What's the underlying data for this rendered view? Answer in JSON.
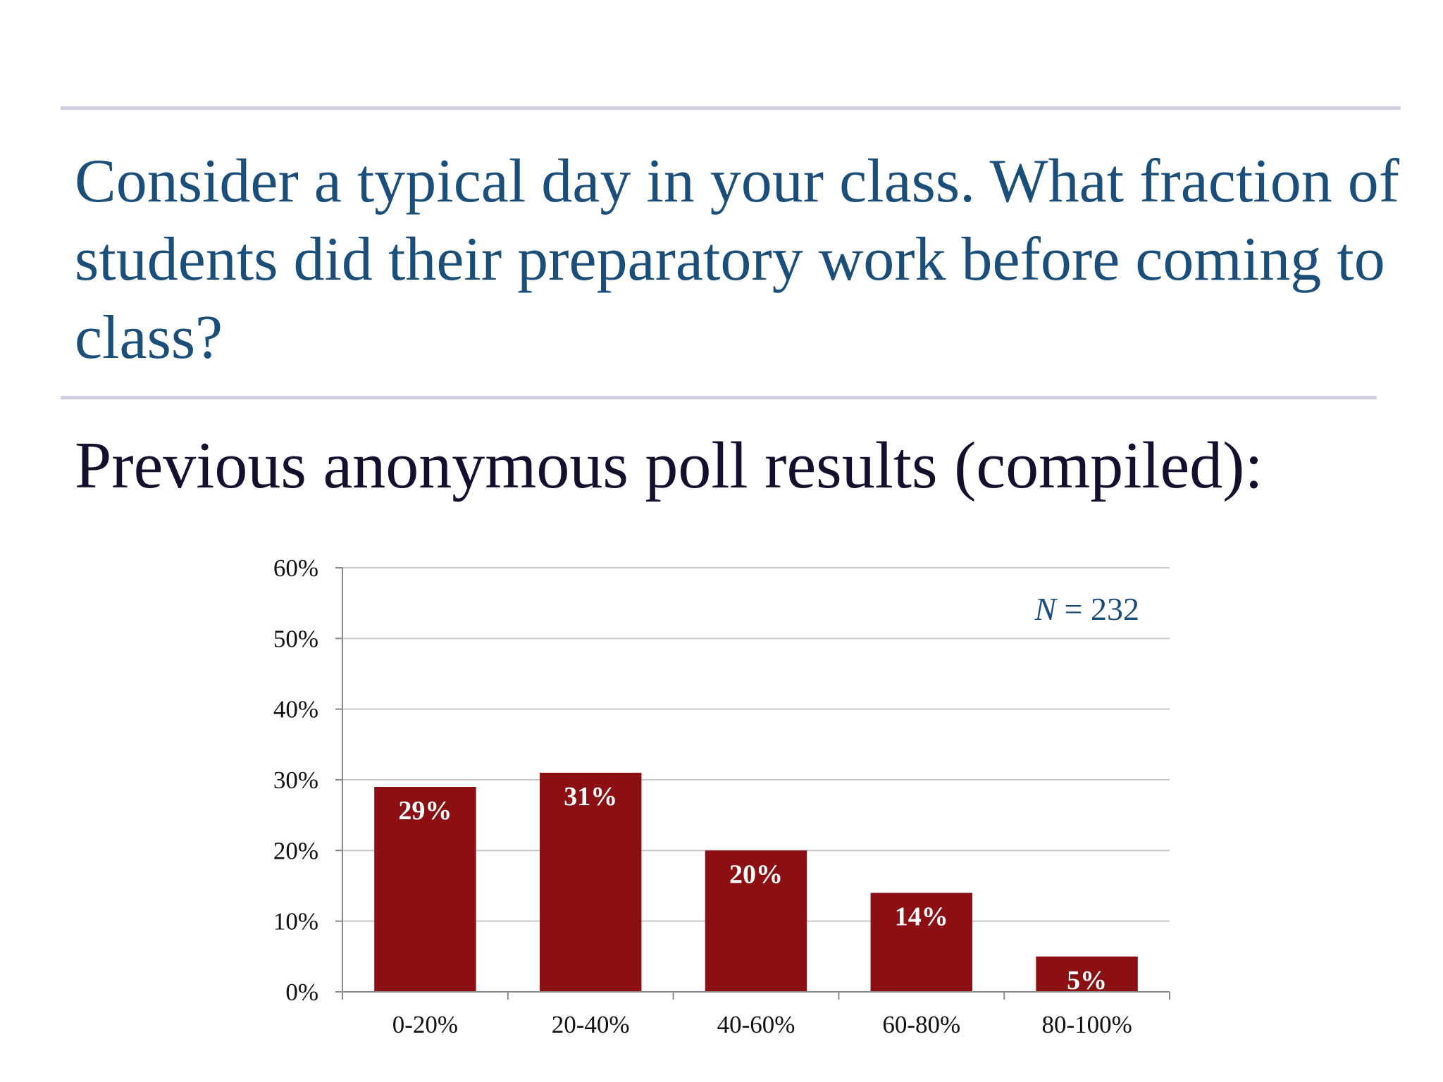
{
  "slide": {
    "question": "Consider a typical day in your class. What fraction of students did their preparatory work before coming to class?",
    "subtitle": "Previous anonymous poll results (compiled):"
  },
  "chart_data": {
    "type": "bar",
    "title": "",
    "xlabel": "",
    "ylabel": "",
    "categories": [
      "0-20%",
      "20-40%",
      "40-60%",
      "60-80%",
      "80-100%"
    ],
    "values": [
      29,
      31,
      20,
      14,
      5
    ],
    "data_labels": [
      "29%",
      "31%",
      "20%",
      "14%",
      "5%"
    ],
    "ylim": [
      0,
      60
    ],
    "yticks": [
      0,
      10,
      20,
      30,
      40,
      50,
      60
    ],
    "ytick_labels": [
      "0%",
      "10%",
      "20%",
      "30%",
      "40%",
      "50%",
      "60%"
    ],
    "grid": true,
    "legend": "none",
    "annotation": {
      "variable": "N",
      "text": " = 232"
    },
    "bar_color": "#8b0f13",
    "grid_color": "#c8c8c8",
    "axis_color": "#8a8a8a"
  }
}
